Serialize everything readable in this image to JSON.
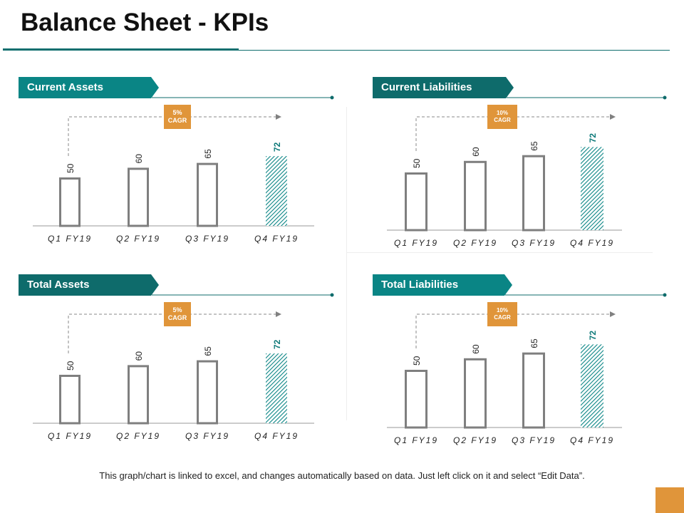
{
  "title": "Balance Sheet - KPIs",
  "footer": "This graph/chart is linked to excel, and changes automatically based on data.  Just left click on it and select “Edit Data”.",
  "colors": {
    "teal_light": "#0a8585",
    "teal_dark": "#0e6b6b",
    "orange": "#e0953a",
    "bar_outline": "#7f7f7f",
    "highlight_label": "#0f7a7a"
  },
  "chart_data": [
    {
      "type": "bar",
      "title": "Current Assets",
      "cagr": [
        "5%",
        "CAGR"
      ],
      "categories": [
        "Q1 FY19",
        "Q2 FY19",
        "Q3 FY19",
        "Q4 FY19"
      ],
      "values": [
        50,
        60,
        65,
        72
      ],
      "highlight_index": 3,
      "ylim": [
        0,
        80
      ]
    },
    {
      "type": "bar",
      "title": "Current Liabilities",
      "cagr": [
        "10%",
        "CAGR"
      ],
      "categories": [
        "Q1 FY19",
        "Q2 FY19",
        "Q3 FY19",
        "Q4 FY19"
      ],
      "values": [
        50,
        60,
        65,
        72
      ],
      "highlight_index": 3,
      "ylim": [
        0,
        80
      ]
    },
    {
      "type": "bar",
      "title": "Total Assets",
      "cagr": [
        "5%",
        "CAGR"
      ],
      "categories": [
        "Q1 FY19",
        "Q2 FY19",
        "Q3 FY19",
        "Q4 FY19"
      ],
      "values": [
        50,
        60,
        65,
        72
      ],
      "highlight_index": 3,
      "ylim": [
        0,
        80
      ]
    },
    {
      "type": "bar",
      "title": "Total Liabilities",
      "cagr": [
        "10%",
        "CAGR"
      ],
      "categories": [
        "Q1 FY19",
        "Q2 FY19",
        "Q3 FY19",
        "Q4 FY19"
      ],
      "values": [
        50,
        60,
        65,
        72
      ],
      "highlight_index": 3,
      "ylim": [
        0,
        80
      ]
    }
  ]
}
